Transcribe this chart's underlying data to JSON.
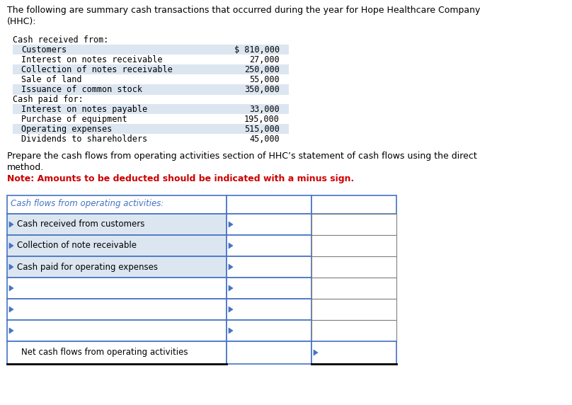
{
  "title_line1": "The following are summary cash transactions that occurred during the year for Hope Healthcare Company",
  "title_line2": "(HHC):",
  "section1_header": "Cash received from:",
  "section1_items": [
    [
      "Customers",
      "$ 810,000"
    ],
    [
      "Interest on notes receivable",
      "27,000"
    ],
    [
      "Collection of notes receivable",
      "250,000"
    ],
    [
      "Sale of land",
      "55,000"
    ],
    [
      "Issuance of common stock",
      "350,000"
    ]
  ],
  "section2_header": "Cash paid for:",
  "section2_items": [
    [
      "Interest on notes payable",
      "33,000"
    ],
    [
      "Purchase of equipment",
      "195,000"
    ],
    [
      "Operating expenses",
      "515,000"
    ],
    [
      "Dividends to shareholders",
      "45,000"
    ]
  ],
  "prepare_text_line1": "Prepare the cash flows from operating activities section of HHC’s statement of cash flows using the direct",
  "prepare_text_line2": "method.",
  "note_text": "Note: Amounts to be deducted should be indicated with a minus sign.",
  "table_header": "Cash flows from operating activities:",
  "table_rows": [
    "Cash received from customers",
    "Collection of note receivable",
    "Cash paid for operating expenses",
    "",
    "",
    ""
  ],
  "table_footer": "Net cash flows from operating activities",
  "bg_color": "#ffffff",
  "text_color": "#000000",
  "note_color": "#cc0000",
  "table_header_color": "#4472c4",
  "row_fill_light": "#dce6f1",
  "table_border_color": "#4472c4",
  "table_border_gray": "#808080",
  "row_text_color": "#000000"
}
